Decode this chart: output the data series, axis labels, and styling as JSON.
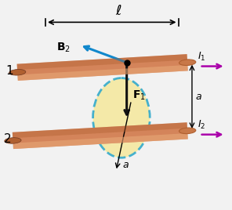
{
  "bg_color": "#f2f2f2",
  "wire_color": "#d4845a",
  "wire_highlight": "#e8a878",
  "wire_shadow": "#b06030",
  "wire_end_face": "#c87848",
  "ellipse_color": "#33aacc",
  "ellipse_fill": "#f5e8a0",
  "arrow_purple": "#aa00aa",
  "arrow_blue": "#1188cc",
  "arrow_black": "#111111",
  "figsize": [
    2.96,
    2.68
  ],
  "dpi": 100,
  "ell_label": "ℓ",
  "I1_label": "I",
  "I2_label": "I",
  "B2_label": "B",
  "F1_label": "F",
  "a_label": "a",
  "label1": "1",
  "label2": "2"
}
